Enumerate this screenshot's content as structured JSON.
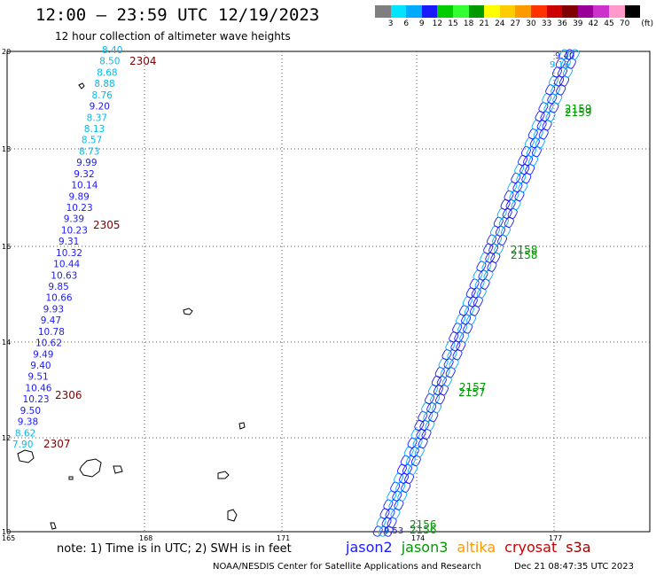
{
  "header": {
    "title": "12:00 — 23:59 UTC 12/19/2023",
    "subtitle": "12 hour collection of altimeter wave heights"
  },
  "color_scale": {
    "unit": "(ft)",
    "bins": [
      {
        "label": "3",
        "color": "#7f7f7f"
      },
      {
        "label": "6",
        "color": "#00e5ff"
      },
      {
        "label": "9",
        "color": "#00aaff"
      },
      {
        "label": "12",
        "color": "#1a1aff"
      },
      {
        "label": "15",
        "color": "#00cc00"
      },
      {
        "label": "18",
        "color": "#33ff33"
      },
      {
        "label": "21",
        "color": "#009900"
      },
      {
        "label": "24",
        "color": "#ffff00"
      },
      {
        "label": "27",
        "color": "#ffcc00"
      },
      {
        "label": "30",
        "color": "#ff9900"
      },
      {
        "label": "33",
        "color": "#ff3300"
      },
      {
        "label": "36",
        "color": "#cc0000"
      },
      {
        "label": "39",
        "color": "#800000"
      },
      {
        "label": "42",
        "color": "#990099"
      },
      {
        "label": "45",
        "color": "#cc33cc"
      },
      {
        "label": "70",
        "color": "#ff99cc"
      },
      {
        "label": "",
        "color": "#000000"
      }
    ]
  },
  "axes": {
    "x_ticks": [
      "165",
      "168",
      "171",
      "174",
      "177"
    ],
    "y_ticks": [
      "20",
      "18",
      "16",
      "14",
      "12",
      "10"
    ]
  },
  "track_left": {
    "values": [
      {
        "v": "8.40",
        "c": "#00bbee"
      },
      {
        "v": "8.50",
        "c": "#00bbee"
      },
      {
        "v": "8.68",
        "c": "#00bbee"
      },
      {
        "v": "8.88",
        "c": "#00bbee"
      },
      {
        "v": "8.76",
        "c": "#00bbee"
      },
      {
        "v": "9.20",
        "c": "#1a1aff"
      },
      {
        "v": "8.37",
        "c": "#00bbee"
      },
      {
        "v": "8.13",
        "c": "#00bbee"
      },
      {
        "v": "8.57",
        "c": "#00bbee"
      },
      {
        "v": "8.73",
        "c": "#00bbee"
      },
      {
        "v": "9.99",
        "c": "#1a1aff"
      },
      {
        "v": "9.32",
        "c": "#1a1aff"
      },
      {
        "v": "10.14",
        "c": "#1a1aff"
      },
      {
        "v": "9.89",
        "c": "#1a1aff"
      },
      {
        "v": "10.23",
        "c": "#1a1aff"
      },
      {
        "v": "9.39",
        "c": "#1a1aff"
      },
      {
        "v": "10.23",
        "c": "#1a1aff"
      },
      {
        "v": "9.31",
        "c": "#1a1aff"
      },
      {
        "v": "10.32",
        "c": "#1a1aff"
      },
      {
        "v": "10.44",
        "c": "#1a1aff"
      },
      {
        "v": "10.63",
        "c": "#1a1aff"
      },
      {
        "v": "9.85",
        "c": "#1a1aff"
      },
      {
        "v": "10.66",
        "c": "#1a1aff"
      },
      {
        "v": "9.93",
        "c": "#1a1aff"
      },
      {
        "v": "9.47",
        "c": "#1a1aff"
      },
      {
        "v": "10.78",
        "c": "#1a1aff"
      },
      {
        "v": "10.62",
        "c": "#1a1aff"
      },
      {
        "v": "9.49",
        "c": "#1a1aff"
      },
      {
        "v": "9.40",
        "c": "#1a1aff"
      },
      {
        "v": "9.51",
        "c": "#1a1aff"
      },
      {
        "v": "10.46",
        "c": "#1a1aff"
      },
      {
        "v": "10.23",
        "c": "#1a1aff"
      },
      {
        "v": "9.50",
        "c": "#1a1aff"
      },
      {
        "v": "9.38",
        "c": "#1a1aff"
      },
      {
        "v": "8.62",
        "c": "#00bbee"
      },
      {
        "v": "7.90",
        "c": "#00bbee"
      }
    ],
    "time_labels": [
      "2304",
      "2305",
      "2306",
      "2307"
    ]
  },
  "track_right": {
    "top_values": [
      "9.40",
      "9.16"
    ],
    "bottom_values": [
      "9.53"
    ],
    "time_labels": [
      "2159",
      "2159",
      "2158",
      "2158",
      "2157",
      "2157",
      "2156",
      "2156"
    ]
  },
  "footer": {
    "note": "note:  1) Time is in UTC; 2) SWH is in feet",
    "satellites": [
      {
        "name": "jason2",
        "color": "#1a1aff"
      },
      {
        "name": "jason3",
        "color": "#009900"
      },
      {
        "name": "altika",
        "color": "#ff9900"
      },
      {
        "name": "cryosat",
        "color": "#cc0000"
      },
      {
        "name": "s3a",
        "color": "#990000"
      }
    ],
    "credit": "NOAA/NESDIS Center for Satellite Applications and Research",
    "timestamp": "Dec 21 08:47:35 UTC 2023"
  }
}
